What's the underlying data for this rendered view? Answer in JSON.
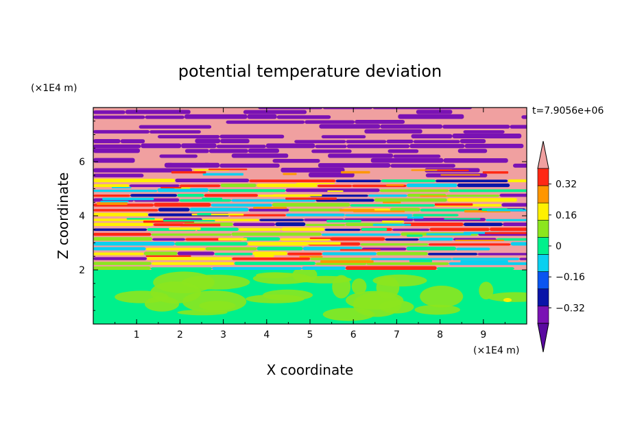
{
  "chart_data": {
    "type": "heatmap",
    "title": "potential temperature deviation",
    "xlabel": "X coordinate",
    "ylabel": "Z coordinate",
    "x_unit": "(×1E4 m)",
    "y_unit": "(×1E4 m)",
    "time_label": "t=7.9056e+06",
    "xlim": [
      0,
      10
    ],
    "ylim": [
      0,
      8
    ],
    "x_ticks": [
      "1",
      "2",
      "3",
      "4",
      "5",
      "6",
      "7",
      "8",
      "9"
    ],
    "y_ticks": [
      "2",
      "4",
      "6"
    ],
    "colorbar": {
      "levels": [
        -0.4,
        -0.32,
        -0.24,
        -0.16,
        -0.08,
        0,
        0.08,
        0.16,
        0.24,
        0.32,
        0.4
      ],
      "tick_labels": [
        "0.32",
        "0.16",
        "0",
        "−0.16",
        "−0.32"
      ],
      "colors": [
        "#5a0aa0",
        "#7a12b4",
        "#0a14a8",
        "#0a55f0",
        "#0ad0f0",
        "#00f08c",
        "#8ce61e",
        "#fff000",
        "#ff9600",
        "#ff2814",
        "#f0a0a0"
      ]
    },
    "grid": false,
    "legend": "colorbar-right",
    "description_colors": {
      "lower_layer": "#00f08c",
      "upper_layer_high": "#f0a0a0",
      "upper_layer_low": "#7a12b4"
    }
  }
}
